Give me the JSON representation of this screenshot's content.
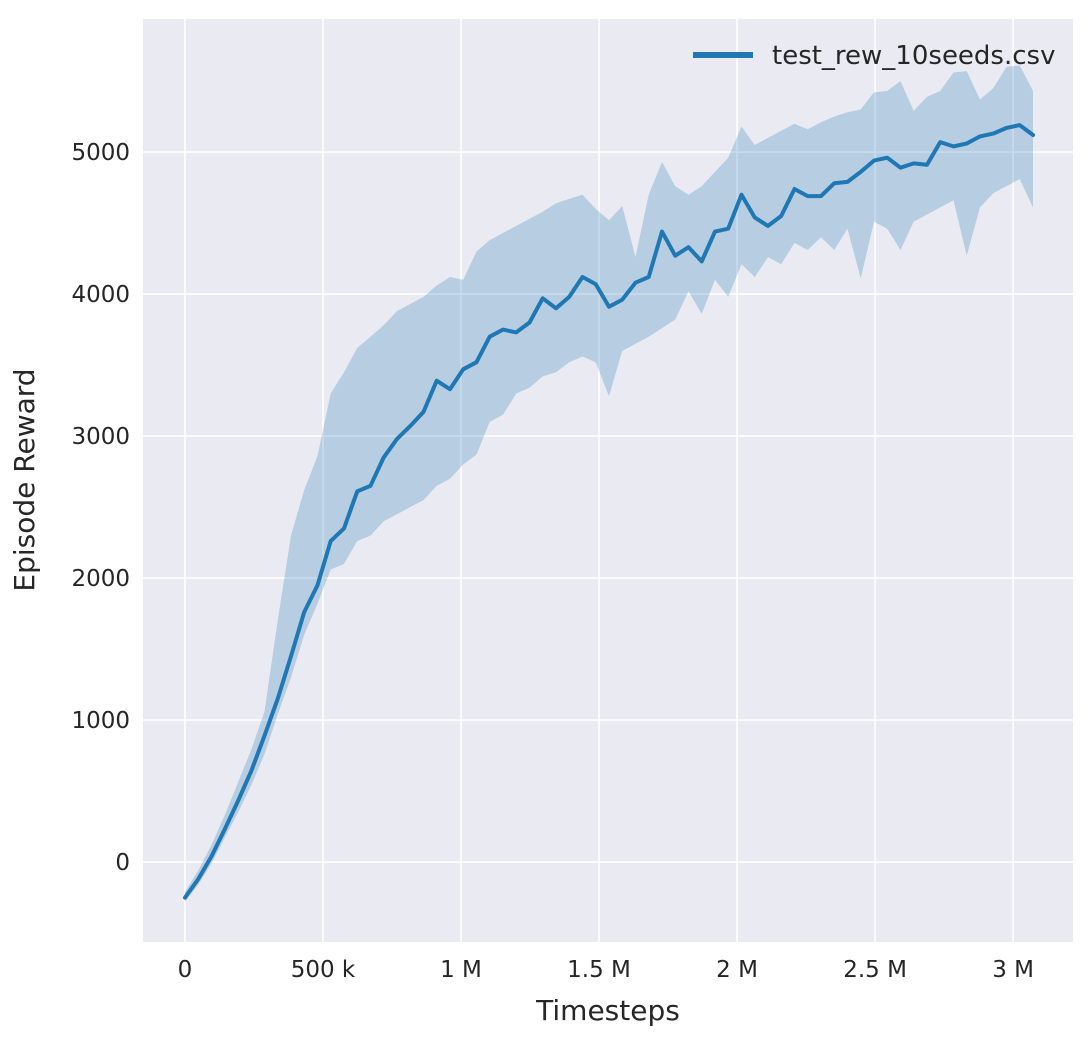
{
  "chart_data": {
    "type": "line",
    "title": "",
    "xlabel": "Timesteps",
    "ylabel": "Episode Reward",
    "grid": true,
    "legend_position": "upper right",
    "style": {
      "line_color": "#1f77b4",
      "band_color": "#1f77b4",
      "band_opacity": 0.25,
      "plot_bg": "#eaeaf2",
      "grid_color": "#ffffff",
      "text_color": "#262626",
      "figure_bg": "#ffffff"
    },
    "xlim": [
      -152000,
      3217000
    ],
    "ylim": [
      -563,
      5937
    ],
    "xticks": [
      {
        "value": 0,
        "label": "0"
      },
      {
        "value": 500000,
        "label": "500 k"
      },
      {
        "value": 1000000,
        "label": "1 M"
      },
      {
        "value": 1500000,
        "label": "1.5 M"
      },
      {
        "value": 2000000,
        "label": "2 M"
      },
      {
        "value": 2500000,
        "label": "2.5 M"
      },
      {
        "value": 3000000,
        "label": "3 M"
      }
    ],
    "yticks": [
      {
        "value": 0,
        "label": "0"
      },
      {
        "value": 1000,
        "label": "1000"
      },
      {
        "value": 2000,
        "label": "2000"
      },
      {
        "value": 3000,
        "label": "3000"
      },
      {
        "value": 4000,
        "label": "4000"
      },
      {
        "value": 5000,
        "label": "5000"
      }
    ],
    "series": [
      {
        "name": "test_rew_10seeds.csv",
        "x": [
          0,
          48000,
          96000,
          144000,
          192000,
          240000,
          288000,
          336000,
          384000,
          432000,
          480000,
          528000,
          576000,
          624000,
          672000,
          720000,
          768000,
          816000,
          864000,
          912000,
          960000,
          1008000,
          1056000,
          1104000,
          1152000,
          1200000,
          1248000,
          1296000,
          1344000,
          1392000,
          1440000,
          1488000,
          1536000,
          1584000,
          1632000,
          1680000,
          1728000,
          1776000,
          1824000,
          1872000,
          1920000,
          1968000,
          2016000,
          2064000,
          2112000,
          2160000,
          2208000,
          2256000,
          2304000,
          2352000,
          2400000,
          2448000,
          2496000,
          2544000,
          2592000,
          2640000,
          2688000,
          2736000,
          2784000,
          2832000,
          2880000,
          2928000,
          2976000,
          3024000,
          3072000
        ],
        "mean": [
          -250,
          -120,
          40,
          230,
          430,
          640,
          890,
          1150,
          1450,
          1760,
          1950,
          2260,
          2350,
          2610,
          2650,
          2850,
          2980,
          3070,
          3170,
          3390,
          3330,
          3470,
          3520,
          3700,
          3750,
          3730,
          3800,
          3970,
          3900,
          3980,
          4120,
          4070,
          3910,
          3960,
          4080,
          4120,
          4440,
          4270,
          4330,
          4230,
          4440,
          4460,
          4700,
          4540,
          4480,
          4550,
          4740,
          4690,
          4690,
          4780,
          4790,
          4860,
          4940,
          4960,
          4890,
          4920,
          4910,
          5070,
          5040,
          5060,
          5110,
          5130,
          5170,
          5190,
          5120
        ],
        "lo": [
          -280,
          -160,
          -10,
          170,
          350,
          540,
          760,
          1040,
          1300,
          1600,
          1820,
          2060,
          2100,
          2260,
          2300,
          2400,
          2450,
          2500,
          2550,
          2650,
          2700,
          2800,
          2870,
          3100,
          3150,
          3300,
          3340,
          3420,
          3450,
          3520,
          3560,
          3520,
          3280,
          3600,
          3650,
          3700,
          3760,
          3820,
          4020,
          3860,
          4100,
          3980,
          4210,
          4120,
          4260,
          4210,
          4360,
          4310,
          4400,
          4310,
          4460,
          4110,
          4510,
          4460,
          4310,
          4510,
          4560,
          4610,
          4660,
          4270,
          4610,
          4710,
          4760,
          4810,
          4610
        ],
        "hi": [
          -210,
          -60,
          120,
          330,
          560,
          790,
          1060,
          1700,
          2300,
          2620,
          2860,
          3300,
          3450,
          3620,
          3700,
          3780,
          3880,
          3930,
          3980,
          4060,
          4120,
          4100,
          4300,
          4380,
          4430,
          4480,
          4530,
          4580,
          4640,
          4670,
          4700,
          4600,
          4520,
          4620,
          4260,
          4700,
          4930,
          4760,
          4700,
          4760,
          4860,
          4960,
          5180,
          5050,
          5100,
          5150,
          5200,
          5160,
          5210,
          5250,
          5280,
          5300,
          5420,
          5430,
          5500,
          5290,
          5390,
          5430,
          5560,
          5570,
          5370,
          5450,
          5600,
          5610,
          5430
        ]
      }
    ]
  }
}
